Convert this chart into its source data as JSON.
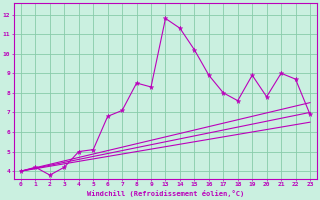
{
  "bg_color": "#caf0e0",
  "grid_color": "#88ccaa",
  "line_color": "#bb00bb",
  "xlabel": "Windchill (Refroidissement éolien,°C)",
  "xtick_labels": [
    "0",
    "1",
    "2",
    "3",
    "4",
    "5",
    "6",
    "7",
    "8",
    "9",
    "13",
    "14",
    "15",
    "16",
    "17",
    "18",
    "19",
    "20",
    "21",
    "22",
    "23"
  ],
  "ytick_labels": [
    "4",
    "5",
    "6",
    "7",
    "8",
    "9",
    "10",
    "11",
    "12"
  ],
  "ytick_vals": [
    4,
    5,
    6,
    7,
    8,
    9,
    10,
    11,
    12
  ],
  "ylim": [
    3.6,
    12.6
  ],
  "xlim": [
    -0.5,
    20.5
  ],
  "line1_y": [
    4.0,
    4.2,
    3.8,
    4.2,
    5.0,
    5.1,
    6.8,
    7.1,
    8.5,
    8.3,
    11.8,
    11.3,
    10.2,
    8.9,
    8.0,
    7.6,
    8.9,
    7.8,
    9.0,
    8.7,
    6.9
  ],
  "line2_x": [
    0,
    20
  ],
  "line2_y": [
    4.0,
    7.0
  ],
  "line3_x": [
    0,
    20
  ],
  "line3_y": [
    4.0,
    6.5
  ],
  "line4_x": [
    0,
    20
  ],
  "line4_y": [
    4.0,
    7.5
  ]
}
